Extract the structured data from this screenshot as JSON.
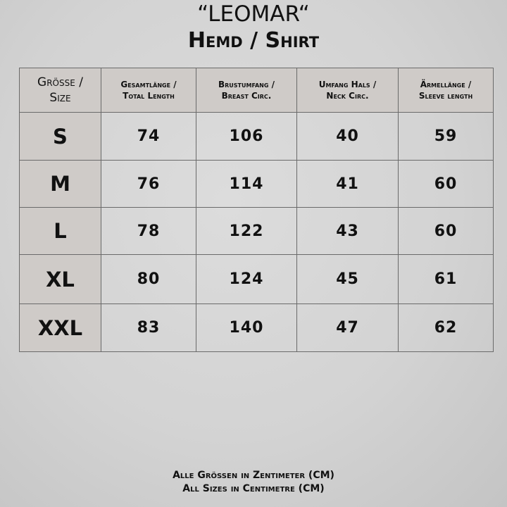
{
  "title": "“LEOMAR“",
  "subtitle": "Hemd / Shirt",
  "table": {
    "headers": [
      {
        "line1": "Grösse /",
        "line2": "Size"
      },
      {
        "line1": "Gesamtlänge /",
        "line2": "Total Length"
      },
      {
        "line1": "Brustumfang /",
        "line2": "Breast Circ."
      },
      {
        "line1": "Umfang Hals /",
        "line2": "Neck Circ."
      },
      {
        "line1": "Ärmellänge /",
        "line2": "Sleeve length"
      }
    ],
    "rows": [
      {
        "size": "S",
        "values": [
          "74",
          "106",
          "40",
          "59"
        ]
      },
      {
        "size": "M",
        "values": [
          "76",
          "114",
          "41",
          "60"
        ]
      },
      {
        "size": "L",
        "values": [
          "78",
          "122",
          "43",
          "60"
        ]
      },
      {
        "size": "XL",
        "values": [
          "80",
          "124",
          "45",
          "61"
        ]
      },
      {
        "size": "XXL",
        "values": [
          "83",
          "140",
          "47",
          "62"
        ]
      }
    ]
  },
  "footer": {
    "line1": "Alle Grössen in Zentimeter (CM)",
    "line2": "All Sizes in Centimetre (CM)"
  }
}
